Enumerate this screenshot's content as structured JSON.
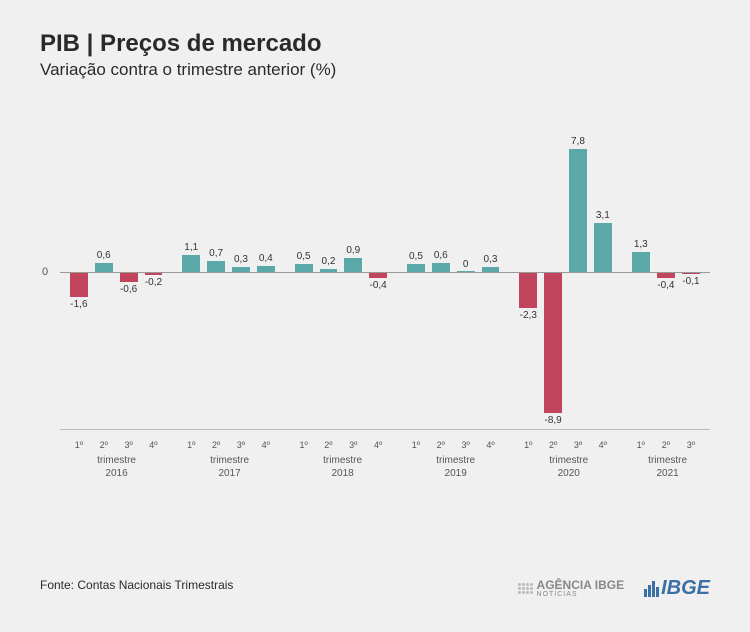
{
  "title": "PIB | Preços de mercado",
  "subtitle": "Variação contra o trimestre anterior (%)",
  "source": "Fonte: Contas Nacionais Trimestrais",
  "chart": {
    "type": "bar",
    "ylim": [
      -10,
      9
    ],
    "zero_label": "0",
    "bar_gap": 3,
    "colors": {
      "pos": "#5aa8a8",
      "neg": "#c1455d"
    },
    "background": "#f0f0f0",
    "zero_line_color": "#999",
    "bottom_line_color": "#bbb",
    "label_fontsize": 10,
    "tick_fontsize": 9,
    "quarter_label_word": "trimestre",
    "years": [
      {
        "year": "2016",
        "quarters": [
          "1º",
          "2º",
          "3º",
          "4º"
        ],
        "values": [
          -1.6,
          0.6,
          -0.6,
          -0.2
        ]
      },
      {
        "year": "2017",
        "quarters": [
          "1º",
          "2º",
          "3º",
          "4º"
        ],
        "values": [
          1.1,
          0.7,
          0.3,
          0.4
        ]
      },
      {
        "year": "2018",
        "quarters": [
          "1º",
          "2º",
          "3º",
          "4º"
        ],
        "values": [
          0.5,
          0.2,
          0.9,
          -0.4
        ]
      },
      {
        "year": "2019",
        "quarters": [
          "1º",
          "2º",
          "3º",
          "4º"
        ],
        "values": [
          0.5,
          0.6,
          0,
          0.3
        ]
      },
      {
        "year": "2020",
        "quarters": [
          "1º",
          "2º",
          "3º",
          "4º"
        ],
        "values": [
          -2.3,
          -8.9,
          7.8,
          3.1
        ]
      },
      {
        "year": "2021",
        "quarters": [
          "1º",
          "2º",
          "3º"
        ],
        "values": [
          1.3,
          -0.4,
          -0.1
        ]
      }
    ]
  },
  "logos": {
    "agencia": {
      "line1": "AGÊNCIA IBGE",
      "line2": "NOTÍCIAS"
    },
    "ibge": "IBGE"
  }
}
